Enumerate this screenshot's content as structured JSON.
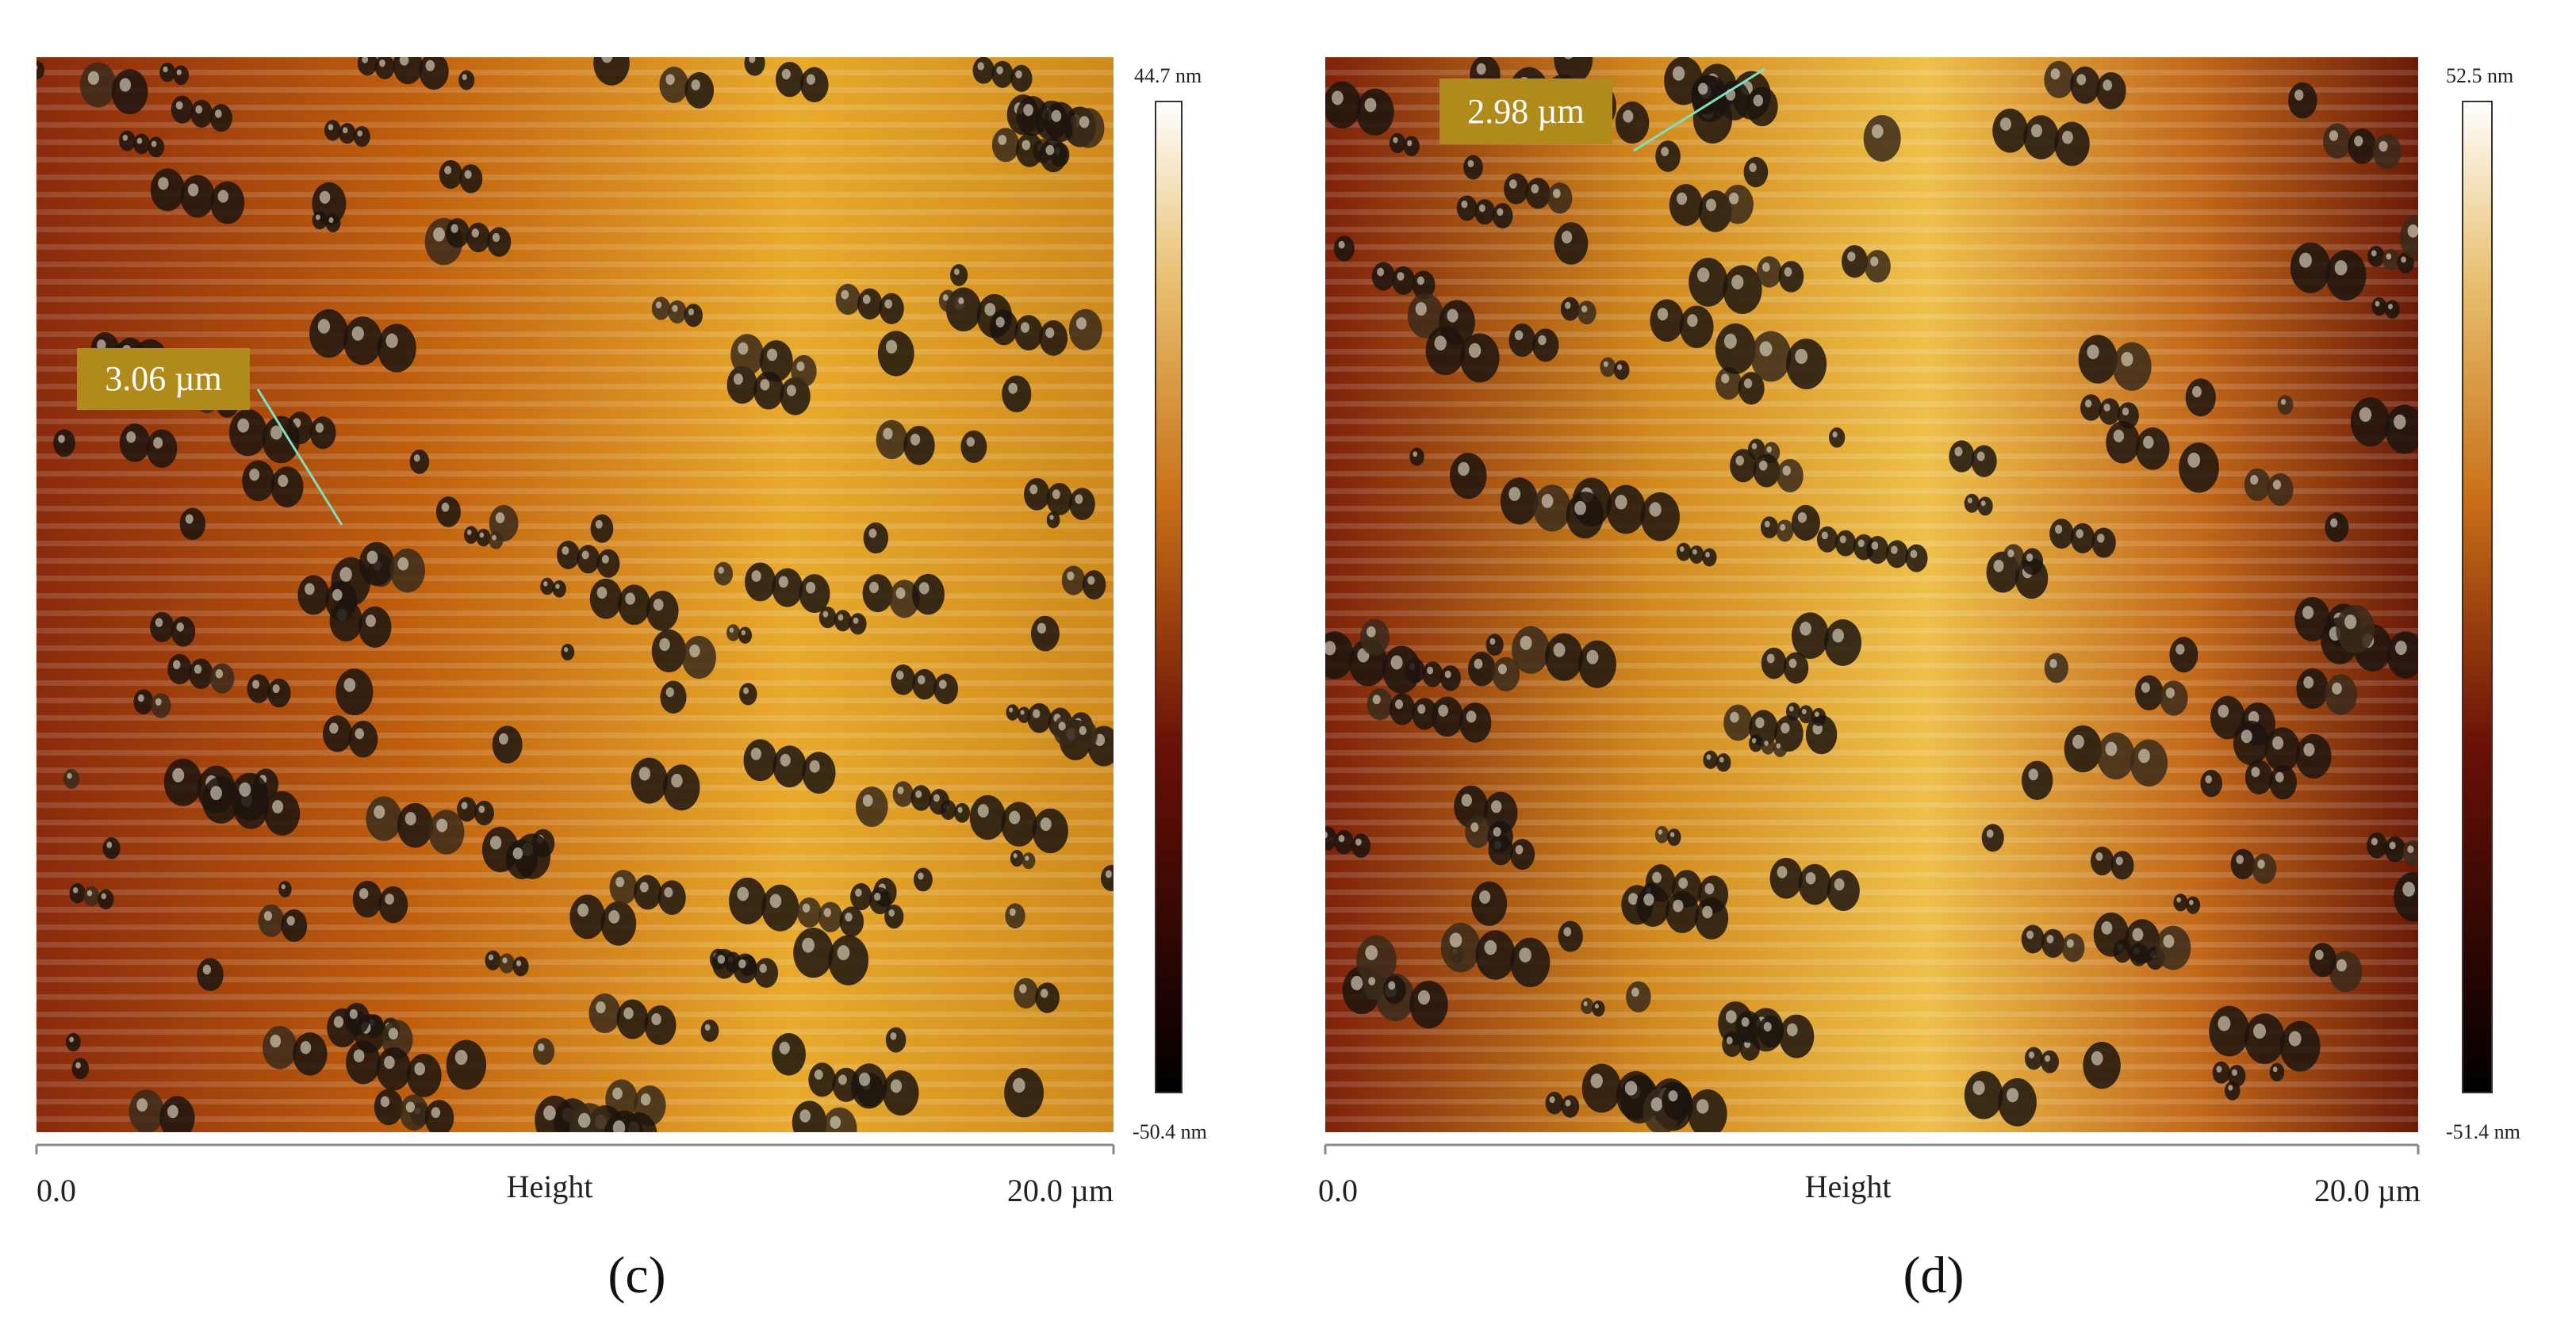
{
  "panels": [
    {
      "scale_label": "3.06 µm",
      "colorbar_max": "44.7 nm",
      "colorbar_min": "-50.4 nm",
      "axis_start": "0.0",
      "axis_title": "Height",
      "axis_end": "20.0 µm",
      "panel_label": "(c)"
    },
    {
      "scale_label": "2.98 µm",
      "colorbar_max": "52.5 nm",
      "colorbar_min": "-51.4 nm",
      "axis_start": "0.0",
      "axis_title": "Height",
      "axis_end": "20.0 µm",
      "panel_label": "(d)"
    }
  ]
}
